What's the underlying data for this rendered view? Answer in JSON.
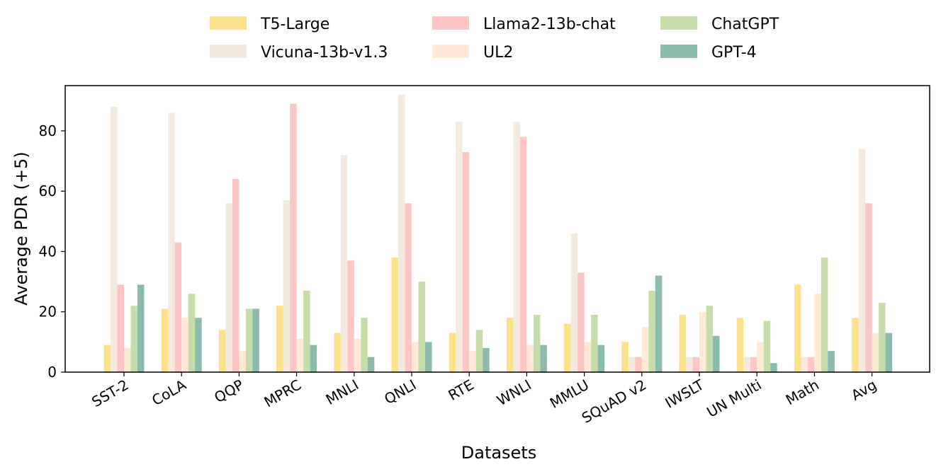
{
  "chart_data": {
    "type": "bar",
    "title": "",
    "xlabel": "Datasets",
    "ylabel": "Average PDR (+5)",
    "ylim": [
      0,
      95
    ],
    "yticks": [
      0,
      20,
      40,
      60,
      80
    ],
    "grid": false,
    "legend_position": "top-center",
    "categories": [
      "SST-2",
      "CoLA",
      "QQP",
      "MPRC",
      "MNLI",
      "QNLI",
      "RTE",
      "WNLI",
      "MMLU",
      "SQuAD v2",
      "IWSLT",
      "UN Multi",
      "Math",
      "Avg"
    ],
    "series": [
      {
        "name": "T5-Large",
        "color": "#FCE08A",
        "values": [
          9,
          21,
          14,
          22,
          13,
          38,
          13,
          18,
          16,
          10,
          19,
          18,
          29,
          18
        ]
      },
      {
        "name": "Vicuna-13b-v1.3",
        "color": "#F3E9DF",
        "values": [
          88,
          86,
          56,
          57,
          72,
          92,
          83,
          83,
          46,
          5,
          5,
          5,
          5,
          74
        ]
      },
      {
        "name": "Llama2-13b-chat",
        "color": "#FEC5C5",
        "values": [
          29,
          43,
          64,
          89,
          37,
          56,
          73,
          78,
          33,
          5,
          5,
          5,
          5,
          56
        ]
      },
      {
        "name": "UL2",
        "color": "#FEE8D6",
        "values": [
          8,
          18,
          7,
          11,
          11,
          10,
          7,
          9,
          10,
          15,
          20,
          10,
          26,
          13
        ]
      },
      {
        "name": "ChatGPT",
        "color": "#C7DDA9",
        "values": [
          22,
          26,
          21,
          27,
          18,
          30,
          14,
          19,
          19,
          27,
          22,
          17,
          38,
          23
        ]
      },
      {
        "name": "GPT-4",
        "color": "#8BBBAD",
        "values": [
          29,
          18,
          21,
          9,
          5,
          10,
          8,
          9,
          9,
          32,
          12,
          3,
          7,
          13
        ]
      }
    ]
  }
}
